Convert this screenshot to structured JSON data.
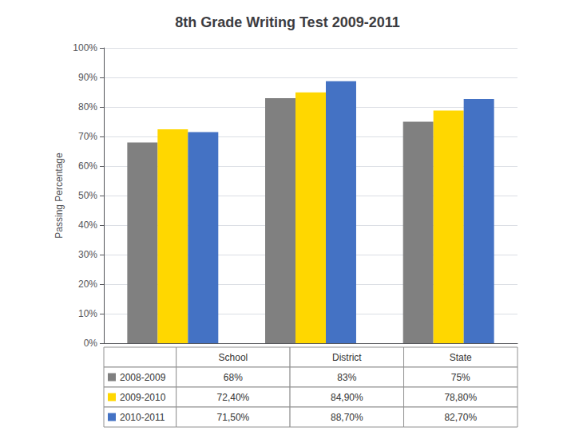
{
  "chart_data": {
    "type": "bar",
    "title": "8th Grade Writing Test 2009-2011",
    "ylabel": "Passing Percentage",
    "categories": [
      "School",
      "District",
      "State"
    ],
    "series": [
      {
        "name": "2008-2009",
        "color": "#808080",
        "values": [
          68,
          83,
          75
        ],
        "value_labels": [
          "68%",
          "83%",
          "75%"
        ]
      },
      {
        "name": "2009-2010",
        "color": "#FFD700",
        "values": [
          72.4,
          84.9,
          78.8
        ],
        "value_labels": [
          "72,40%",
          "84,90%",
          "78,80%"
        ]
      },
      {
        "name": "2010-2011",
        "color": "#4472C4",
        "values": [
          71.5,
          88.7,
          82.7
        ],
        "value_labels": [
          "71,50%",
          "88,70%",
          "82,70%"
        ]
      }
    ],
    "ylim": [
      0,
      100
    ],
    "yticks": [
      {
        "value": 0,
        "label": "0%"
      },
      {
        "value": 10,
        "label": "10%"
      },
      {
        "value": 20,
        "label": "20%"
      },
      {
        "value": 30,
        "label": "30%"
      },
      {
        "value": 40,
        "label": "40%"
      },
      {
        "value": 50,
        "label": "50%"
      },
      {
        "value": 60,
        "label": "60%"
      },
      {
        "value": 70,
        "label": "70%"
      },
      {
        "value": 80,
        "label": "80%"
      },
      {
        "value": 90,
        "label": "90%"
      },
      {
        "value": 100,
        "label": "100%"
      }
    ],
    "grid": true,
    "tick_labels": "y"
  }
}
